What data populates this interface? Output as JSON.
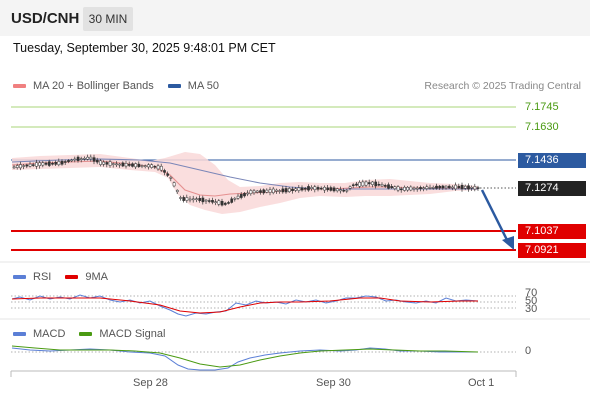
{
  "header": {
    "symbol": "USD/CNH",
    "timeframe": "30 MIN"
  },
  "datetime": "Tuesday, September 30, 2025 9:48:01 PM CET",
  "legend": {
    "ma20": {
      "label": "MA 20 + Bollinger Bands",
      "color": "#f08080"
    },
    "ma50": {
      "label": "MA 50",
      "color": "#2c5aa0"
    }
  },
  "credit": "Research © 2025 Trading Central",
  "levels": {
    "resistance2": "7.1745",
    "resistance1": "7.1630",
    "pivot": "7.1436",
    "last": "7.1274",
    "support1": "7.1037",
    "support2": "7.0921"
  },
  "colors": {
    "green": "#4a9a12",
    "pivot": "#2c5aa0",
    "support": "#e00000",
    "last": "#222222",
    "arrow": "#2c5aa0"
  },
  "rsi": {
    "label": "RSI",
    "ma_label": "9MA",
    "levels": [
      "70",
      "50",
      "30"
    ],
    "rsi_color": "#5b7fd6",
    "ma_color": "#e00000"
  },
  "macd": {
    "label": "MACD",
    "signal_label": "MACD Signal",
    "zero_label": "0",
    "macd_color": "#5b7fd6",
    "signal_color": "#4a9a12"
  },
  "xaxis": {
    "labels": [
      "Sep 28",
      "Sep 30",
      "Oct 1"
    ]
  },
  "icons": {
    "forecast": "down-arrow-icon"
  }
}
